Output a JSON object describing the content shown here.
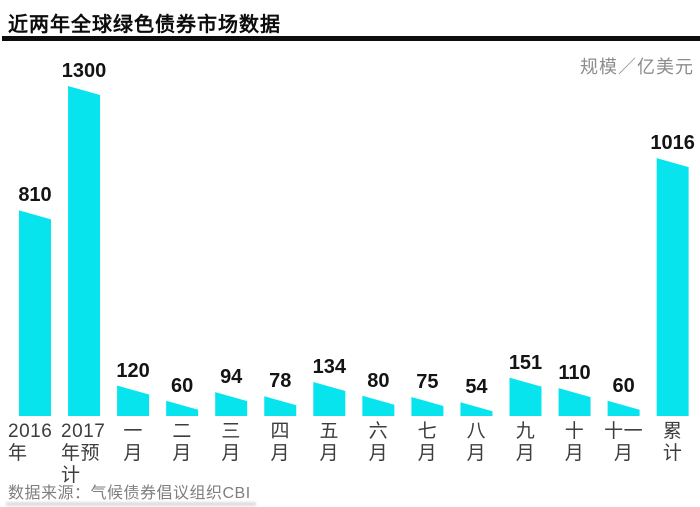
{
  "title": "近两年全球绿色债券市场数据",
  "unit_label": "规模／亿美元",
  "source_note": "数据来源：气候债券倡议组织CBI",
  "colors": {
    "bar": "#08e4ee",
    "title_text": "#0d0d0d",
    "rule": "#0d0d0d",
    "value_text": "#141414",
    "axis_text": "#3d3d3d",
    "muted_text": "#8c8c8c"
  },
  "chart_data": {
    "type": "bar",
    "title": "近两年全球绿色债券市场数据",
    "ylabel": "规模／亿美元",
    "unit": "亿美元",
    "categories": [
      "2016年",
      "2017年预计",
      "一月",
      "二月",
      "三月",
      "四月",
      "五月",
      "六月",
      "七月",
      "八月",
      "九月",
      "十月",
      "十一月",
      "累计"
    ],
    "values": [
      810,
      1300,
      120,
      60,
      94,
      78,
      134,
      80,
      75,
      54,
      151,
      110,
      60,
      1016
    ],
    "value_labels": [
      "810",
      "1300",
      "120",
      "60",
      "94",
      "78",
      "134",
      "80",
      "75",
      "54",
      "151",
      "110",
      "60",
      "1016"
    ],
    "x_tick_lines": [
      [
        "2016",
        "年"
      ],
      [
        "2017",
        "年预计"
      ],
      [
        "一",
        "月"
      ],
      [
        "二",
        "月"
      ],
      [
        "三",
        "月"
      ],
      [
        "四",
        "月"
      ],
      [
        "五",
        "月"
      ],
      [
        "六",
        "月"
      ],
      [
        "七",
        "月"
      ],
      [
        "八",
        "月"
      ],
      [
        "九",
        "月"
      ],
      [
        "十",
        "月"
      ],
      [
        "十一",
        "月"
      ],
      [
        "累",
        "计"
      ]
    ],
    "ylim": [
      0,
      1300
    ],
    "grid": false,
    "legend": false,
    "bar_style": "wedge-sloped-top",
    "source": "数据来源：气候债券倡议组织CBI"
  }
}
